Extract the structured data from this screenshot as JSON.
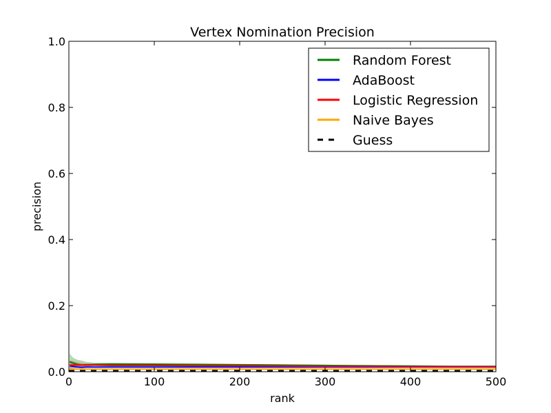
{
  "chart_data": {
    "type": "line",
    "title": "Vertex Nomination Precision",
    "xlabel": "rank",
    "ylabel": "precision",
    "xlim": [
      0,
      500
    ],
    "ylim": [
      0.0,
      1.0
    ],
    "x_ticks": [
      0,
      100,
      200,
      300,
      400,
      500
    ],
    "y_ticks": [
      0.0,
      0.2,
      0.4,
      0.6,
      0.8,
      1.0
    ],
    "x_tick_labels": [
      "0",
      "100",
      "200",
      "300",
      "400",
      "500"
    ],
    "y_tick_labels": [
      "0.0",
      "0.2",
      "0.4",
      "0.6",
      "0.8",
      "1.0"
    ],
    "grid": false,
    "legend_position": "top-right",
    "series": [
      {
        "name": "Random Forest",
        "color": "#008000",
        "style": "solid",
        "x": [
          1,
          5,
          10,
          15,
          20,
          30,
          50,
          100,
          150,
          200,
          250,
          300,
          350,
          400,
          450,
          500
        ],
        "y": [
          0.03,
          0.026,
          0.022,
          0.02,
          0.021,
          0.022,
          0.023,
          0.023,
          0.022,
          0.021,
          0.02,
          0.019,
          0.018,
          0.017,
          0.016,
          0.016
        ],
        "band_upper": [
          0.055,
          0.042,
          0.036,
          0.034,
          0.03,
          0.027,
          0.027,
          0.025,
          0.024,
          0.023,
          0.022,
          0.021,
          0.02,
          0.019,
          0.018,
          0.018
        ],
        "band_lower": [
          0.008,
          0.012,
          0.014,
          0.014,
          0.016,
          0.018,
          0.019,
          0.02,
          0.02,
          0.019,
          0.018,
          0.017,
          0.016,
          0.015,
          0.014,
          0.014
        ]
      },
      {
        "name": "AdaBoost",
        "color": "#0000ff",
        "style": "solid",
        "x": [
          1,
          5,
          10,
          15,
          20,
          30,
          50,
          100,
          150,
          200,
          250,
          300,
          350,
          400,
          450,
          500
        ],
        "y": [
          0.018,
          0.016,
          0.014,
          0.013,
          0.014,
          0.014,
          0.014,
          0.014,
          0.014,
          0.014,
          0.014,
          0.014,
          0.014,
          0.014,
          0.014,
          0.014
        ]
      },
      {
        "name": "Logistic Regression",
        "color": "#ff0000",
        "style": "solid",
        "x": [
          1,
          5,
          10,
          15,
          20,
          30,
          50,
          100,
          150,
          200,
          250,
          300,
          350,
          400,
          450,
          500
        ],
        "y": [
          0.02,
          0.02,
          0.02,
          0.02,
          0.02,
          0.02,
          0.019,
          0.019,
          0.018,
          0.018,
          0.017,
          0.016,
          0.016,
          0.015,
          0.015,
          0.015
        ],
        "band_upper": [
          0.034,
          0.032,
          0.028,
          0.026,
          0.025,
          0.023,
          0.022,
          0.021,
          0.02,
          0.02,
          0.019,
          0.018,
          0.018,
          0.017,
          0.017,
          0.017
        ],
        "band_lower": [
          0.006,
          0.008,
          0.012,
          0.014,
          0.015,
          0.017,
          0.016,
          0.017,
          0.016,
          0.016,
          0.015,
          0.014,
          0.014,
          0.013,
          0.013,
          0.013
        ]
      },
      {
        "name": "Naive Bayes",
        "color": "#ffa500",
        "style": "solid",
        "x": [
          1,
          5,
          10,
          15,
          20,
          30,
          50,
          100,
          150,
          200,
          250,
          300,
          350,
          400,
          450,
          500
        ],
        "y": [
          0.008,
          0.008,
          0.008,
          0.008,
          0.008,
          0.008,
          0.008,
          0.008,
          0.008,
          0.008,
          0.008,
          0.008,
          0.008,
          0.008,
          0.008,
          0.008
        ]
      },
      {
        "name": "Guess",
        "color": "#000000",
        "style": "dashed",
        "x": [
          0,
          500
        ],
        "y": [
          0.002,
          0.002
        ]
      }
    ]
  }
}
